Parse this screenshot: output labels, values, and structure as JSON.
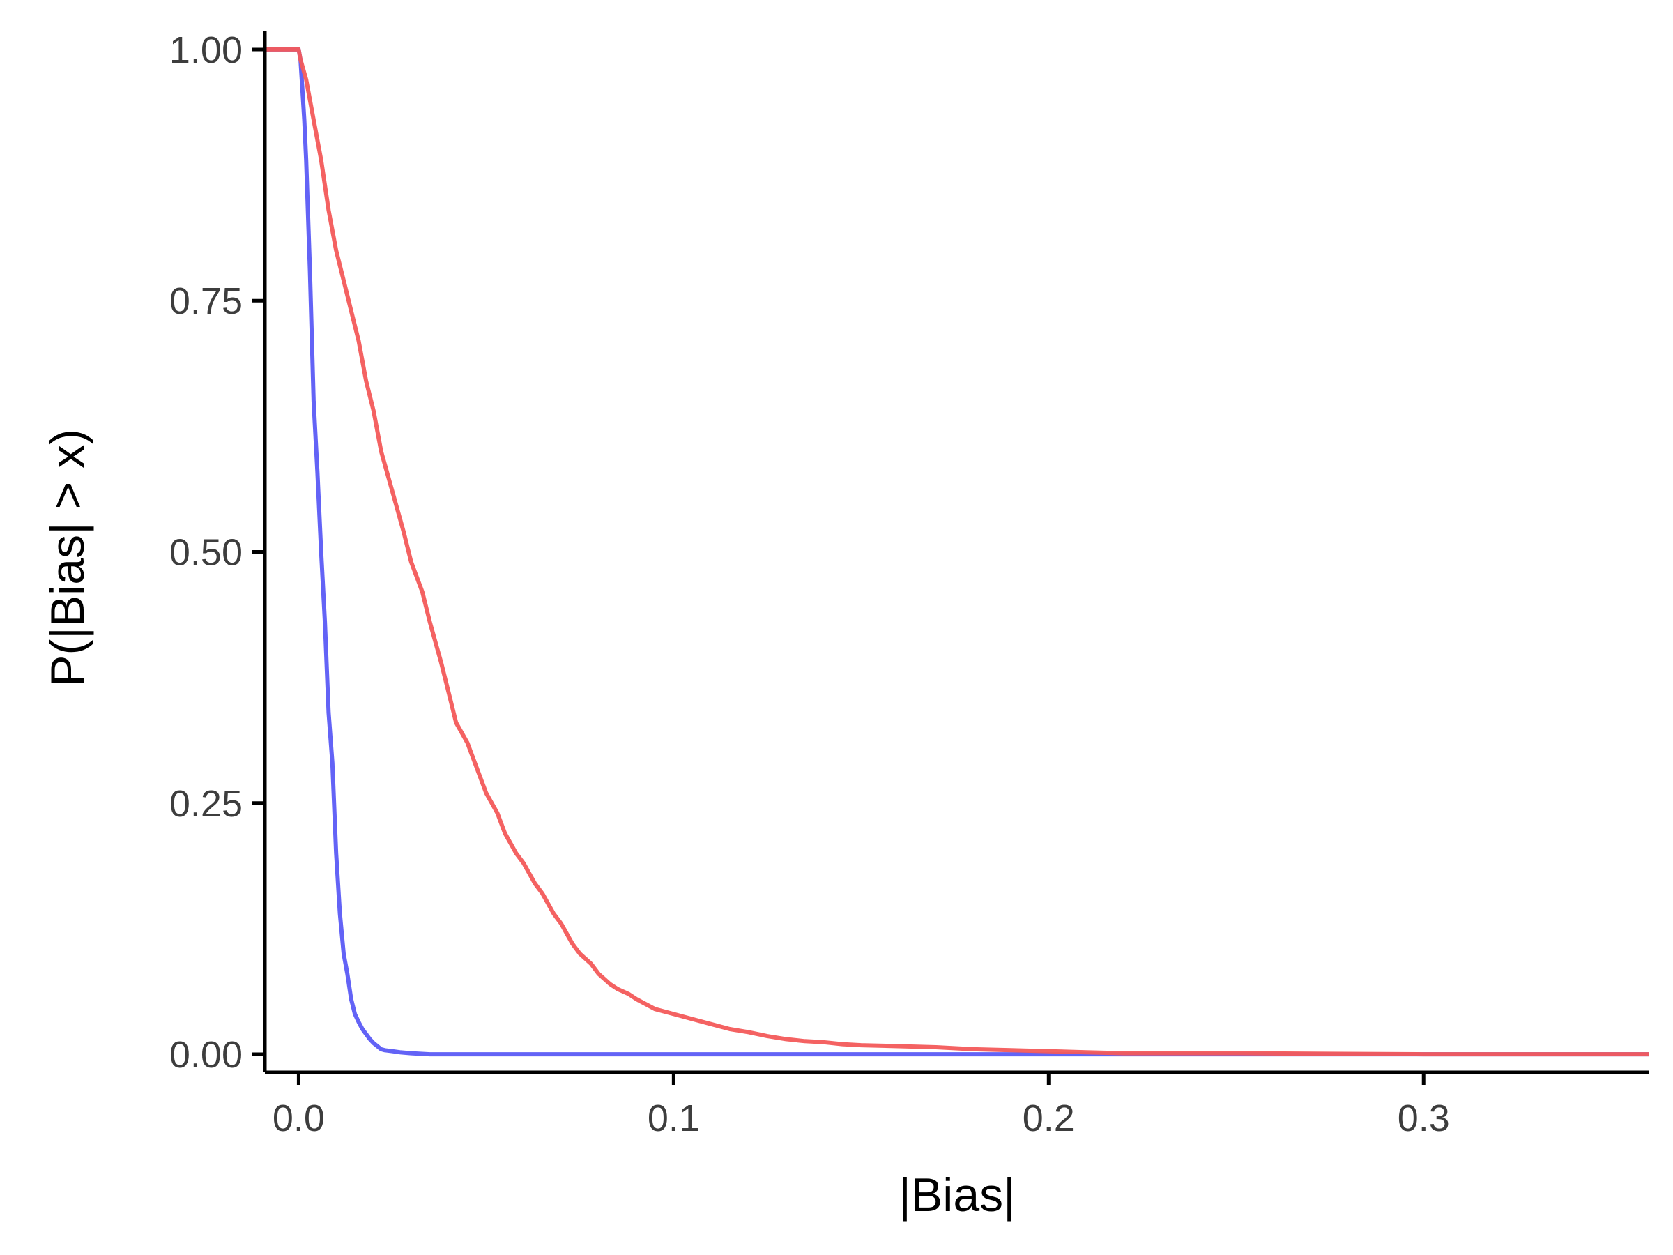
{
  "chart_data": {
    "type": "line",
    "title": "",
    "xlabel": "|Bias|",
    "ylabel": "P(|Bias| > x)",
    "xlim": [
      -0.009,
      0.36
    ],
    "ylim": [
      -0.018,
      1.018
    ],
    "xticks": [
      0.0,
      0.1,
      0.2,
      0.3
    ],
    "xtick_labels": [
      "0.0",
      "0.1",
      "0.2",
      "0.3"
    ],
    "yticks": [
      0.0,
      0.25,
      0.5,
      0.75,
      1.0
    ],
    "ytick_labels": [
      "0.00",
      "0.25",
      "0.50",
      "0.75",
      "1.00"
    ],
    "grid": false,
    "legend": "none",
    "series": [
      {
        "color": "#5b5bf5",
        "x": [
          -0.009,
          0.0,
          0.0005,
          0.001,
          0.0015,
          0.002,
          0.003,
          0.004,
          0.005,
          0.006,
          0.007,
          0.008,
          0.009,
          0.01,
          0.011,
          0.012,
          0.013,
          0.014,
          0.015,
          0.016,
          0.017,
          0.018,
          0.019,
          0.02,
          0.021,
          0.022,
          0.023,
          0.025,
          0.027,
          0.03,
          0.035,
          0.36
        ],
        "y": [
          1.0,
          1.0,
          0.99,
          0.96,
          0.93,
          0.89,
          0.78,
          0.65,
          0.58,
          0.5,
          0.43,
          0.34,
          0.29,
          0.2,
          0.14,
          0.1,
          0.08,
          0.055,
          0.04,
          0.032,
          0.025,
          0.02,
          0.015,
          0.011,
          0.008,
          0.005,
          0.004,
          0.003,
          0.002,
          0.001,
          0.0,
          0.0
        ]
      },
      {
        "color": "#f35a5a",
        "x": [
          -0.009,
          0.0,
          0.0005,
          0.002,
          0.004,
          0.006,
          0.008,
          0.01,
          0.012,
          0.014,
          0.016,
          0.018,
          0.02,
          0.022,
          0.025,
          0.028,
          0.03,
          0.033,
          0.035,
          0.038,
          0.04,
          0.042,
          0.045,
          0.048,
          0.05,
          0.053,
          0.055,
          0.058,
          0.06,
          0.063,
          0.065,
          0.068,
          0.07,
          0.073,
          0.075,
          0.078,
          0.08,
          0.083,
          0.085,
          0.088,
          0.09,
          0.095,
          0.1,
          0.105,
          0.11,
          0.115,
          0.12,
          0.125,
          0.13,
          0.135,
          0.14,
          0.145,
          0.15,
          0.16,
          0.17,
          0.18,
          0.19,
          0.2,
          0.21,
          0.22,
          0.25,
          0.3,
          0.36
        ],
        "y": [
          1.0,
          1.0,
          0.99,
          0.97,
          0.93,
          0.89,
          0.84,
          0.8,
          0.77,
          0.74,
          0.71,
          0.67,
          0.64,
          0.6,
          0.56,
          0.52,
          0.49,
          0.46,
          0.43,
          0.39,
          0.36,
          0.33,
          0.31,
          0.28,
          0.26,
          0.24,
          0.22,
          0.2,
          0.19,
          0.17,
          0.16,
          0.14,
          0.13,
          0.11,
          0.1,
          0.09,
          0.08,
          0.07,
          0.065,
          0.06,
          0.055,
          0.045,
          0.04,
          0.035,
          0.03,
          0.025,
          0.022,
          0.018,
          0.015,
          0.013,
          0.012,
          0.01,
          0.009,
          0.008,
          0.007,
          0.005,
          0.004,
          0.003,
          0.002,
          0.001,
          0.001,
          0.0,
          0.0
        ]
      }
    ]
  }
}
